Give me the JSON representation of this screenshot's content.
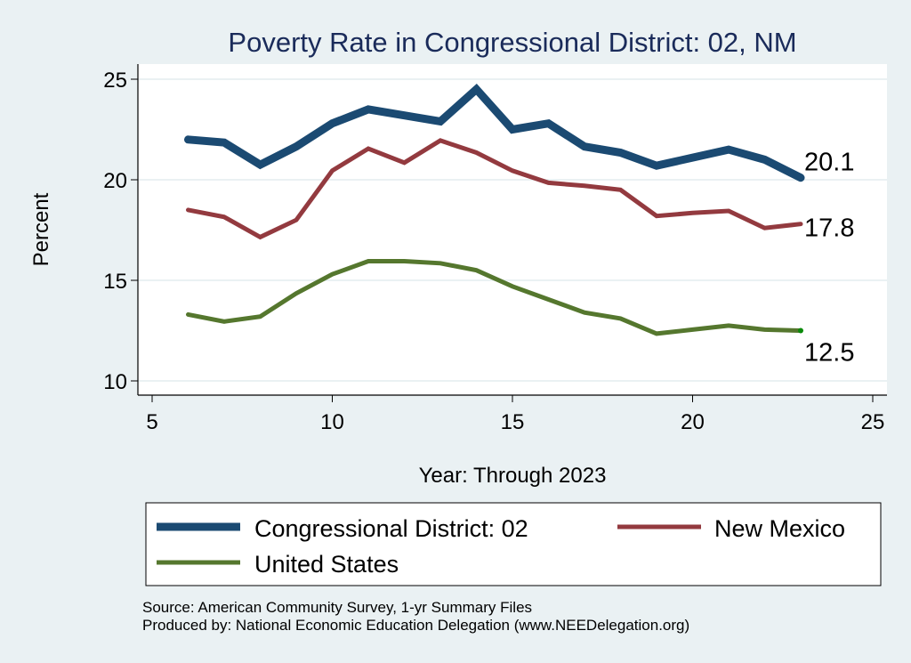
{
  "chart_data": {
    "type": "line",
    "title": "Poverty Rate in Congressional District:  02, NM",
    "xlabel": "Year: Through 2023",
    "ylabel": "Percent",
    "xlim": [
      5,
      25
    ],
    "ylim": [
      10,
      25
    ],
    "xticks": [
      5,
      10,
      15,
      20,
      25
    ],
    "yticks": [
      10,
      15,
      20,
      25
    ],
    "grid": "horizontal",
    "legend_position": "bottom",
    "x": [
      6,
      7,
      8,
      9,
      10,
      11,
      12,
      13,
      14,
      15,
      16,
      17,
      18,
      19,
      20,
      21,
      22,
      23
    ],
    "series": [
      {
        "name": "Congressional District:  02",
        "color": "#1b4a72",
        "values": [
          22.0,
          21.85,
          20.75,
          21.65,
          22.8,
          23.5,
          23.2,
          22.9,
          24.5,
          22.5,
          22.8,
          21.65,
          21.35,
          20.7,
          21.1,
          21.5,
          21.0,
          20.1
        ],
        "end_label": "20.1"
      },
      {
        "name": "New Mexico",
        "color": "#933a3f",
        "values": [
          18.5,
          18.15,
          17.15,
          18.0,
          20.45,
          21.55,
          20.85,
          21.95,
          21.35,
          20.45,
          19.85,
          19.7,
          19.5,
          18.2,
          18.35,
          18.45,
          17.6,
          17.8
        ],
        "end_label": "17.8"
      },
      {
        "name": "United States",
        "color": "#55772e",
        "values": [
          13.3,
          12.95,
          13.2,
          14.35,
          15.3,
          15.95,
          15.95,
          15.85,
          15.5,
          14.7,
          14.05,
          13.4,
          13.1,
          12.35,
          12.55,
          12.75,
          12.55,
          12.5
        ],
        "end_label": "12.5"
      }
    ],
    "notes": [
      "Source: American Community Survey, 1-yr Summary Files",
      "Produced by: National Economic Education Delegation (www.NEEDelegation.org)"
    ]
  }
}
